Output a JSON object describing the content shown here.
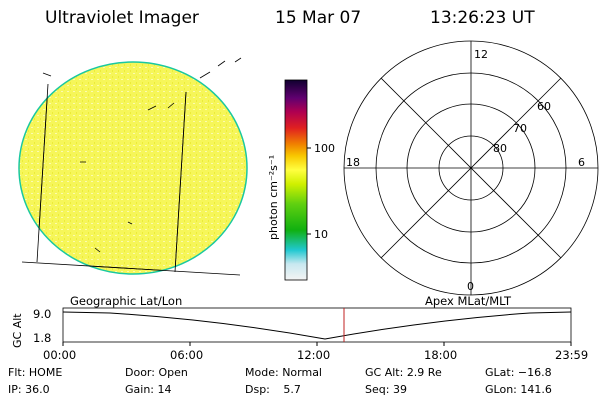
{
  "header": {
    "instrument": "Ultraviolet Imager",
    "date": "15 Mar 07",
    "time": "13:26:23 UT"
  },
  "colorbar": {
    "unit_label": "photon cm⁻²s⁻¹",
    "ticks": [
      "100",
      "10"
    ]
  },
  "polar": {
    "mlt_labels": [
      "12",
      "18",
      "6",
      "0"
    ],
    "lat_labels": [
      "60",
      "70",
      "80"
    ]
  },
  "panels": {
    "left_caption": "Geographic Lat/Lon",
    "right_caption": "Apex MLat/MLT"
  },
  "orbit": {
    "ylabel": "GC Alt",
    "y_ticks": [
      "9.0",
      "1.8"
    ],
    "x_ticks": [
      "00:00",
      "06:00",
      "12:00",
      "18:00",
      "23:59"
    ],
    "current_time": "13:26"
  },
  "status": {
    "row1": [
      {
        "label": "Flt:",
        "value": "HOME"
      },
      {
        "label": "Door:",
        "value": "Open"
      },
      {
        "label": "Mode:",
        "value": "Normal"
      },
      {
        "label": "GC Alt:",
        "value": "2.9 Re"
      },
      {
        "label": "GLat:",
        "value": "−16.8"
      }
    ],
    "row2": [
      {
        "label": "IP:",
        "value": "36.0"
      },
      {
        "label": "Gain:",
        "value": "14"
      },
      {
        "label": "Dsp:",
        "value": "5.7"
      },
      {
        "label": "Seq:",
        "value": "39"
      },
      {
        "label": "GLon:",
        "value": "141.6"
      }
    ]
  },
  "colors": {
    "disk_fill": "#f6f659",
    "disk_edge": "#19c8a0",
    "marker": "#c02020"
  }
}
